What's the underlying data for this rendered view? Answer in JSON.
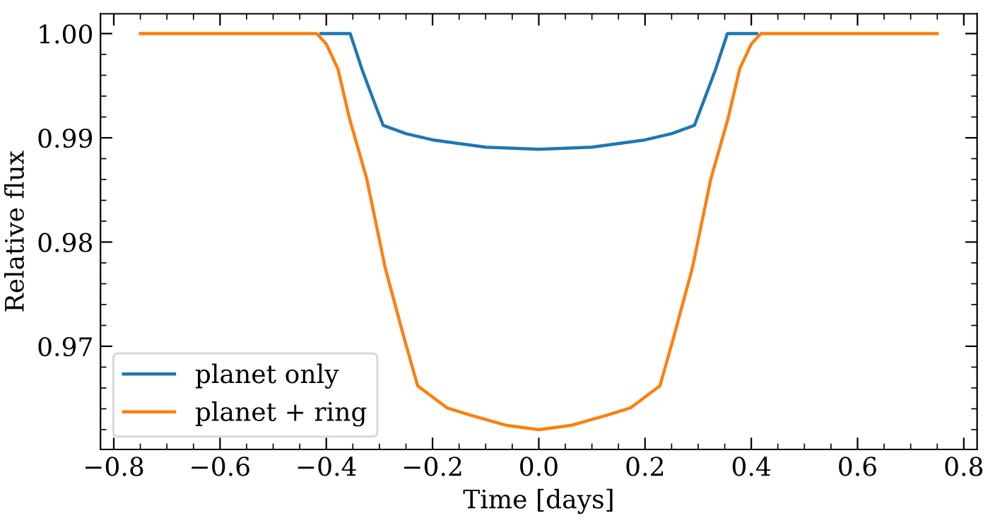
{
  "chart_data": {
    "type": "line",
    "xlabel": "Time [days]",
    "ylabel": "Relative flux",
    "xlim": [
      -0.825,
      0.825
    ],
    "ylim": [
      0.9601,
      1.0019
    ],
    "xticks": [
      {
        "value": -0.8,
        "label": "−0.8"
      },
      {
        "value": -0.6,
        "label": "−0.6"
      },
      {
        "value": -0.4,
        "label": "−0.4"
      },
      {
        "value": -0.2,
        "label": "−0.2"
      },
      {
        "value": 0,
        "label": "0.0"
      },
      0.2,
      0.4,
      0.6,
      0.8
    ],
    "yticks": [
      0.97,
      0.98,
      0.99,
      {
        "value": 1.0,
        "label": "1.00"
      }
    ],
    "grid": false,
    "legend": "bottom left",
    "line_style": "solid",
    "marker": "none",
    "series": [
      {
        "name": "planet only",
        "color": "#1f77b4",
        "x": [
          -0.41,
          -0.355,
          -0.333,
          -0.311,
          -0.293,
          -0.25,
          -0.2,
          -0.1,
          0,
          0.1,
          0.2,
          0.25,
          0.293,
          0.311,
          0.333,
          0.355,
          0.41
        ],
        "values": [
          1.0,
          1.0,
          0.9966,
          0.9936,
          0.9912,
          0.9904,
          0.9898,
          0.9891,
          0.9889,
          0.9891,
          0.9898,
          0.9904,
          0.9912,
          0.9936,
          0.9966,
          1.0,
          1.0
        ]
      },
      {
        "name": "planet + ring",
        "color": "#ff7f0e",
        "x": [
          -0.75,
          -0.5,
          -0.418,
          -0.4,
          -0.378,
          -0.356,
          -0.324,
          -0.289,
          -0.253,
          -0.228,
          -0.173,
          -0.129,
          -0.06,
          0,
          0.06,
          0.129,
          0.173,
          0.228,
          0.253,
          0.289,
          0.324,
          0.356,
          0.378,
          0.4,
          0.418,
          0.5,
          0.75
        ],
        "values": [
          1.0,
          1.0,
          1.0,
          0.999,
          0.9966,
          0.9918,
          0.9861,
          0.9775,
          0.9707,
          0.9662,
          0.9641,
          0.9634,
          0.9624,
          0.962,
          0.9624,
          0.9634,
          0.9641,
          0.9662,
          0.9707,
          0.9775,
          0.9861,
          0.9918,
          0.9966,
          0.999,
          1.0,
          1.0,
          1.0
        ]
      }
    ]
  }
}
